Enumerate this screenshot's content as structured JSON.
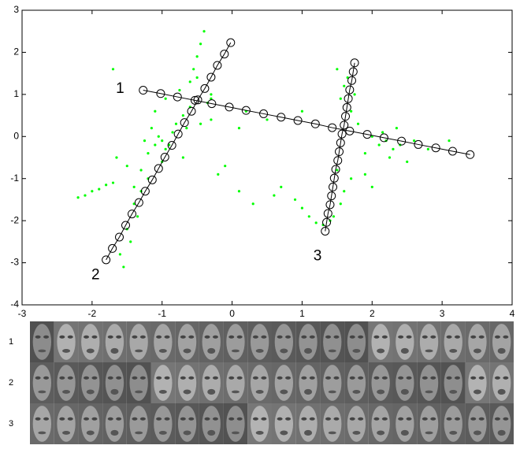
{
  "chart_data": {
    "type": "scatter",
    "xlim": [
      -3,
      4
    ],
    "ylim": [
      -4,
      3
    ],
    "xticks": [
      -3,
      -2,
      -1,
      0,
      1,
      2,
      3,
      4
    ],
    "yticks": [
      -4,
      -3,
      -2,
      -1,
      0,
      1,
      2,
      3
    ],
    "series": [
      {
        "color": "#00ff00",
        "marker": "dot",
        "x": [
          -1.1,
          -1.0,
          -0.95,
          -1.05,
          -1.2,
          -0.9,
          -0.85,
          -1.15,
          -1.0,
          -0.8,
          -1.3,
          -0.7,
          -1.1,
          -0.95,
          -1.25,
          -0.75,
          -0.6,
          -0.55,
          -0.5,
          -0.45,
          -0.4,
          -0.5,
          -0.35,
          -0.6,
          -0.3,
          -0.7,
          -0.45,
          -0.65,
          -1.2,
          -1.3,
          -1.4,
          -1.35,
          -1.5,
          -1.45,
          -1.6,
          -1.55,
          -1.4,
          -1.5,
          -1.65,
          -2.2,
          -2.1,
          -2.0,
          -1.9,
          -1.8,
          -1.7,
          -0.2,
          -0.1,
          0.1,
          0.3,
          -0.3,
          0.2,
          0.5,
          2.1,
          2.2,
          2.3,
          2.0,
          2.4,
          2.25,
          2.15,
          1.9,
          2.5,
          2.35,
          2.6,
          1.8,
          1.7,
          1.75,
          1.65,
          1.6,
          1.55,
          1.5,
          1.7,
          1.6,
          1.55,
          1.45,
          1.4,
          1.3,
          1.2,
          1.1,
          1.0,
          0.9,
          0.6,
          0.7,
          1.0,
          1.5,
          1.9,
          2.0,
          3.1,
          2.8,
          -1.7,
          -0.3,
          0.1
        ],
        "values": [
          -0.2,
          -0.1,
          -0.3,
          0.0,
          -0.4,
          -0.2,
          0.1,
          0.2,
          -0.6,
          0.3,
          -0.8,
          0.5,
          0.6,
          0.9,
          -0.1,
          1.1,
          1.3,
          1.6,
          1.9,
          2.2,
          2.5,
          1.4,
          0.8,
          0.7,
          1.0,
          -0.5,
          0.3,
          0.2,
          -1.0,
          -1.3,
          -1.6,
          -1.9,
          -2.2,
          -2.5,
          -2.8,
          -3.1,
          -1.2,
          -0.7,
          -0.5,
          -1.45,
          -1.4,
          -1.3,
          -1.25,
          -1.15,
          -1.1,
          -0.9,
          -0.7,
          -1.3,
          -1.6,
          0.9,
          0.6,
          0.4,
          -0.2,
          -0.1,
          -0.3,
          0.0,
          -0.2,
          -0.5,
          0.1,
          -0.4,
          -0.6,
          0.2,
          -0.1,
          0.3,
          0.6,
          1.0,
          1.4,
          1.2,
          0.9,
          -0.8,
          -1.0,
          -1.3,
          -1.6,
          -1.9,
          -2.0,
          -2.1,
          -2.05,
          -1.9,
          -1.7,
          -1.5,
          -1.4,
          -1.2,
          0.6,
          1.6,
          -0.9,
          -1.2,
          -0.1,
          -0.3,
          1.6,
          0.4,
          0.2
        ]
      },
      {
        "color": "#000000",
        "marker": "circle",
        "line": true,
        "x": [
          -1.27,
          -1.02,
          -0.78,
          -0.53,
          -0.29,
          -0.04,
          0.2,
          0.45,
          0.7,
          0.94,
          1.19,
          1.43,
          1.68,
          1.93,
          2.17,
          2.42,
          2.66,
          2.91,
          3.15,
          3.4
        ],
        "values": [
          1.1,
          1.02,
          0.94,
          0.86,
          0.78,
          0.7,
          0.62,
          0.54,
          0.46,
          0.38,
          0.3,
          0.21,
          0.13,
          0.05,
          -0.03,
          -0.11,
          -0.19,
          -0.27,
          -0.35,
          -0.43
        ]
      },
      {
        "color": "#000000",
        "marker": "circle",
        "line": true,
        "x": [
          -1.8,
          -1.71,
          -1.61,
          -1.52,
          -1.43,
          -1.33,
          -1.24,
          -1.14,
          -1.05,
          -0.96,
          -0.86,
          -0.77,
          -0.68,
          -0.58,
          -0.49,
          -0.39,
          -0.3,
          -0.21,
          -0.11,
          -0.02
        ],
        "values": [
          -2.93,
          -2.66,
          -2.39,
          -2.11,
          -1.84,
          -1.57,
          -1.3,
          -1.03,
          -0.76,
          -0.49,
          -0.21,
          0.06,
          0.33,
          0.6,
          0.87,
          1.14,
          1.41,
          1.69,
          1.96,
          2.23
        ]
      },
      {
        "color": "#000000",
        "marker": "circle",
        "line": true,
        "x": [
          1.33,
          1.35,
          1.37,
          1.4,
          1.42,
          1.44,
          1.46,
          1.48,
          1.51,
          1.53,
          1.55,
          1.57,
          1.6,
          1.62,
          1.64,
          1.66,
          1.68,
          1.71,
          1.73,
          1.75
        ],
        "values": [
          -2.25,
          -2.04,
          -1.83,
          -1.62,
          -1.41,
          -1.2,
          -0.99,
          -0.78,
          -0.57,
          -0.36,
          -0.15,
          0.06,
          0.27,
          0.48,
          0.69,
          0.9,
          1.11,
          1.33,
          1.54,
          1.75
        ]
      }
    ],
    "annotations": [
      {
        "text": "1",
        "x": -1.6,
        "y": 1.13
      },
      {
        "text": "2",
        "x": -1.95,
        "y": -3.3
      },
      {
        "text": "3",
        "x": 1.22,
        "y": -2.85
      }
    ]
  },
  "face_rows": {
    "labels": [
      "1",
      "2",
      "3"
    ]
  }
}
